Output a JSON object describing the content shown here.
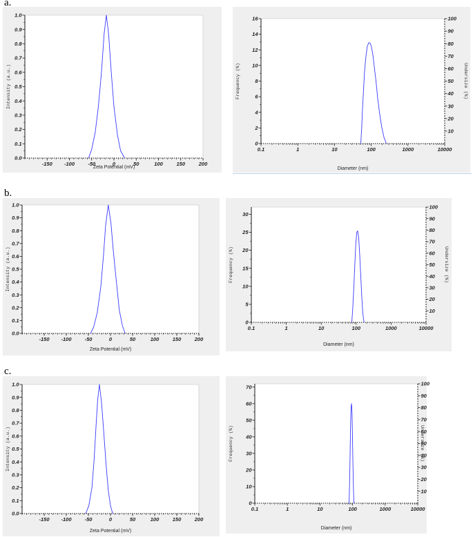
{
  "row_labels": [
    "a.",
    "b.",
    "c."
  ],
  "colors": {
    "line": "#3a3aff",
    "panel": "#efefef",
    "plot": "#ffffff",
    "axis": "#000000"
  },
  "chart_data": [
    {
      "id": "a-zeta",
      "type": "line",
      "xlabel": "Zeta Potential (mV)",
      "ylabel": "Intensity (a.u.)",
      "xlim": [
        -200,
        200
      ],
      "ylim": [
        0,
        1.0
      ],
      "xticks": [
        -150,
        -100,
        -50,
        0,
        50,
        100,
        150,
        200
      ],
      "yticks": [
        0.0,
        0.1,
        0.2,
        0.3,
        0.4,
        0.5,
        0.6,
        0.7,
        0.8,
        0.9,
        1.0
      ],
      "grid": false,
      "series": [
        {
          "x": [
            -57,
            -50,
            -42,
            -35,
            -28,
            -22,
            -17,
            -12,
            -6,
            0,
            8,
            15,
            24
          ],
          "y": [
            0.0,
            0.06,
            0.18,
            0.36,
            0.6,
            0.87,
            1.0,
            0.87,
            0.6,
            0.36,
            0.16,
            0.05,
            0.0
          ]
        }
      ]
    },
    {
      "id": "a-size",
      "type": "line",
      "xlabel": "Diameter (nm)",
      "ylabel": "Frequency (%)",
      "y2label": "Undersize (%)",
      "xscale": "log",
      "xlim": [
        0.1,
        10000
      ],
      "ylim": [
        0,
        16
      ],
      "y2lim": [
        0,
        100
      ],
      "xticks": [
        0.1,
        1,
        10,
        100,
        1000,
        10000
      ],
      "yticks": [
        0,
        2,
        4,
        6,
        8,
        10,
        12,
        14,
        16
      ],
      "y2ticks": [
        10,
        20,
        30,
        40,
        50,
        60,
        70,
        80,
        90,
        100
      ],
      "grid": false,
      "series": [
        {
          "x": [
            52,
            55,
            58,
            62,
            66,
            72,
            78,
            85,
            92,
            100,
            110,
            120,
            135,
            150,
            170,
            195,
            225,
            260
          ],
          "y": [
            0,
            2.0,
            4.5,
            7.0,
            9.3,
            11.2,
            12.4,
            12.9,
            12.9,
            12.5,
            11.5,
            10.0,
            8.0,
            5.8,
            3.8,
            2.0,
            0.7,
            0
          ]
        }
      ]
    },
    {
      "id": "b-zeta",
      "type": "line",
      "xlabel": "Zeta Potential (mV)",
      "ylabel": "Intensity (a.u.)",
      "xlim": [
        -200,
        200
      ],
      "ylim": [
        0,
        1.0
      ],
      "xticks": [
        -150,
        -100,
        -50,
        0,
        50,
        100,
        150,
        200
      ],
      "yticks": [
        0.0,
        0.1,
        0.2,
        0.3,
        0.4,
        0.5,
        0.6,
        0.7,
        0.8,
        0.9,
        1.0
      ],
      "grid": false,
      "series": [
        {
          "x": [
            -45,
            -38,
            -30,
            -22,
            -16,
            -11,
            -5,
            1,
            7,
            14,
            20,
            27,
            33
          ],
          "y": [
            0.0,
            0.05,
            0.16,
            0.36,
            0.6,
            0.84,
            1.0,
            0.86,
            0.62,
            0.38,
            0.18,
            0.06,
            0.0
          ]
        }
      ]
    },
    {
      "id": "b-size",
      "type": "line",
      "xlabel": "Diameter (nm)",
      "ylabel": "Frequency (%)",
      "y2label": "Undersize (%)",
      "xscale": "log",
      "xlim": [
        0.1,
        10000
      ],
      "ylim": [
        0,
        32
      ],
      "y2lim": [
        0,
        100
      ],
      "xticks": [
        0.1,
        1,
        10,
        100,
        1000,
        10000
      ],
      "yticks": [
        0,
        5,
        10,
        15,
        20,
        25,
        30
      ],
      "y2ticks": [
        10,
        20,
        30,
        40,
        50,
        60,
        70,
        80,
        90,
        100
      ],
      "grid": false,
      "series": [
        {
          "x": [
            75,
            80,
            86,
            92,
            98,
            104,
            110,
            118,
            126,
            135,
            145,
            155,
            168
          ],
          "y": [
            0,
            4,
            10,
            16.5,
            22,
            25,
            25.4,
            23.5,
            19,
            13,
            7,
            2.5,
            0
          ]
        }
      ]
    },
    {
      "id": "c-zeta",
      "type": "line",
      "xlabel": "Zeta Potential (mV)",
      "ylabel": "Intensity (a.u.)",
      "xlim": [
        -200,
        200
      ],
      "ylim": [
        0,
        1.0
      ],
      "xticks": [
        -150,
        -100,
        -50,
        0,
        50,
        100,
        150,
        200
      ],
      "yticks": [
        0.0,
        0.1,
        0.2,
        0.3,
        0.4,
        0.5,
        0.6,
        0.7,
        0.8,
        0.9,
        1.0
      ],
      "grid": false,
      "series": [
        {
          "x": [
            -56,
            -49,
            -42,
            -37,
            -33,
            -29,
            -25,
            -20,
            -15,
            -10,
            -5,
            0,
            5
          ],
          "y": [
            0.0,
            0.06,
            0.2,
            0.42,
            0.66,
            0.88,
            1.0,
            0.85,
            0.62,
            0.38,
            0.18,
            0.06,
            0.0
          ]
        }
      ]
    },
    {
      "id": "c-size",
      "type": "line",
      "xlabel": "Diameter (nm)",
      "ylabel": "Frequency (%)",
      "y2label": "Undersize (%)",
      "xscale": "log",
      "xlim": [
        0.1,
        10000
      ],
      "ylim": [
        0,
        72
      ],
      "y2lim": [
        0,
        100
      ],
      "xticks": [
        0.1,
        1,
        10,
        100,
        1000,
        10000
      ],
      "yticks": [
        0,
        10,
        20,
        30,
        40,
        50,
        60,
        70
      ],
      "y2ticks": [
        10,
        20,
        30,
        40,
        50,
        60,
        70,
        80,
        90,
        100
      ],
      "grid": false,
      "series": [
        {
          "x": [
            78,
            81,
            84,
            87,
            90,
            93,
            96,
            99,
            102,
            106,
            110
          ],
          "y": [
            0,
            12,
            30,
            48,
            58,
            60,
            55,
            42,
            26,
            10,
            0
          ]
        }
      ]
    }
  ]
}
